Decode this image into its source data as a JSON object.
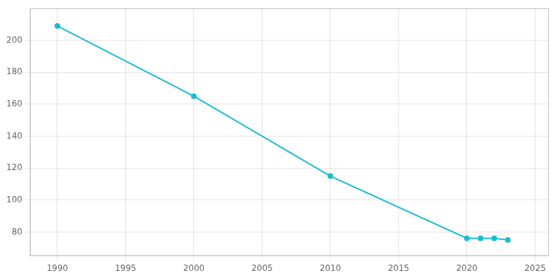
{
  "chart_data": {
    "type": "line",
    "x": [
      1990,
      2000,
      2010,
      2020,
      2021,
      2022,
      2023
    ],
    "values": [
      209,
      165,
      115,
      76,
      76,
      76,
      75
    ],
    "color": "#17BECF",
    "marker": "circle",
    "xlim": [
      1988,
      2026
    ],
    "ylim": [
      65,
      220
    ],
    "xticks": [
      1990,
      1995,
      2000,
      2005,
      2010,
      2015,
      2020,
      2025
    ],
    "yticks": [
      80,
      100,
      120,
      140,
      160,
      180,
      200
    ],
    "grid": true
  }
}
